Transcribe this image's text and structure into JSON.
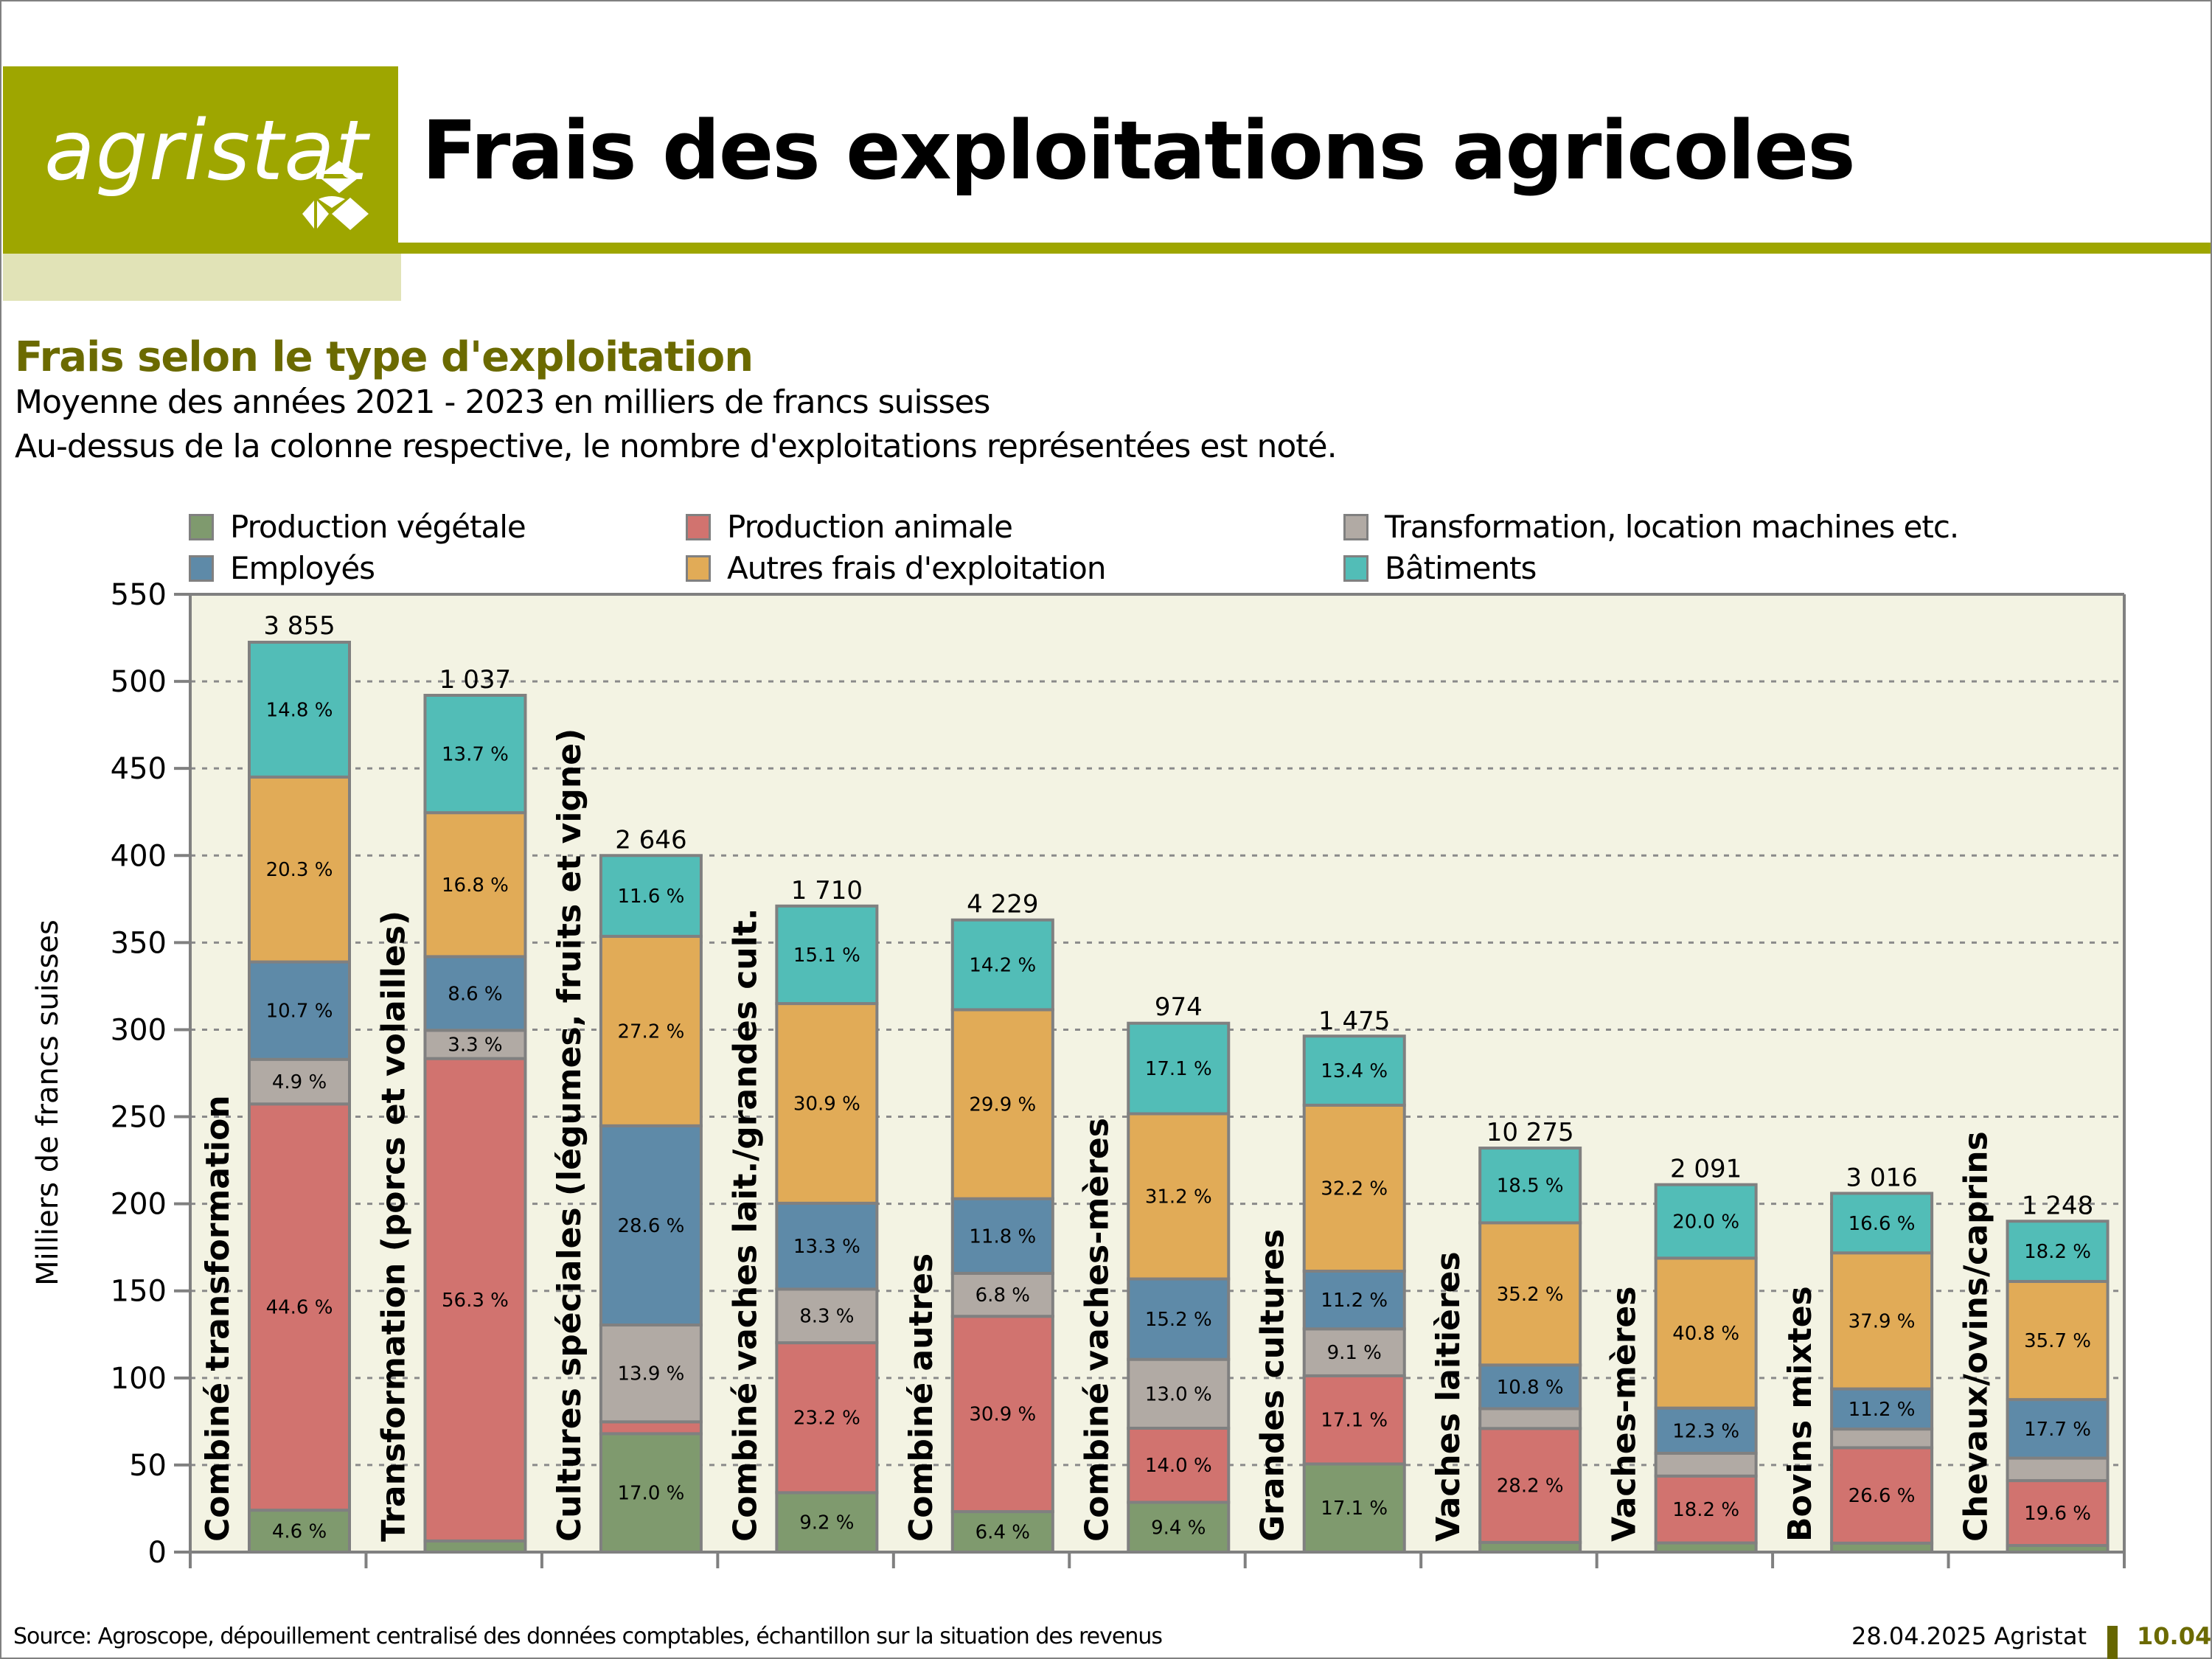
{
  "header": {
    "logo_text": "agristat",
    "title": "Frais des exploitations agricoles",
    "brand_color": "#9ea600",
    "brand_light_color": "#e1e3b7"
  },
  "section": {
    "subtitle": "Frais selon le type d'exploitation",
    "line1": "Moyenne des années 2021 - 2023 en milliers de francs suisses",
    "line2": "Au-dessus de la colonne respective, le nombre d'exploitations représentées est noté."
  },
  "footer": {
    "source": "Source: Agroscope, dépouillement centralisé des données comptables, échantillon sur la situation des revenus",
    "date_org": "28.04.2025 Agristat",
    "page_number": "10.04"
  },
  "chart_data": {
    "type": "bar",
    "stacked": true,
    "title": "Frais selon le type d'exploitation",
    "xlabel": "",
    "ylabel": "Milliers de francs suisses",
    "ylim": [
      0,
      550
    ],
    "yticks": [
      0,
      50,
      100,
      150,
      200,
      250,
      300,
      350,
      400,
      450,
      500,
      550
    ],
    "grid": true,
    "legend_position": "top",
    "categories": [
      "Combiné transformation",
      "Transformation (porcs et volailles)",
      "Cultures spéciales (légumes, fruits et vigne)",
      "Combiné vaches lait./grandes cult.",
      "Combiné autres",
      "Combiné vaches-mères",
      "Grandes cultures",
      "Vaches laitières",
      "Vaches-mères",
      "Bovins mixtes",
      "Chevaux/ovins/caprins"
    ],
    "totals": [
      523,
      492,
      400,
      371,
      363,
      304,
      296,
      232,
      211,
      206,
      190
    ],
    "farm_counts": [
      "3 855",
      "1 037",
      "2 646",
      "1 710",
      "4 229",
      "974",
      "1 475",
      "10 275",
      "2 091",
      "3 016",
      "1 248"
    ],
    "series": [
      {
        "name": "Production végétale",
        "color": "#7f9a6e",
        "percent": [
          4.6,
          1.3,
          17.0,
          9.2,
          6.4,
          9.4,
          17.1,
          2.4,
          2.5,
          2.5,
          2.0
        ],
        "labels": [
          "4.6 %",
          null,
          "17.0 %",
          "9.2 %",
          "6.4 %",
          "9.4 %",
          "17.1 %",
          null,
          null,
          null,
          null
        ]
      },
      {
        "name": "Production animale",
        "color": "#d1736f",
        "percent": [
          44.6,
          56.3,
          1.7,
          23.2,
          30.9,
          14.0,
          17.1,
          28.2,
          18.2,
          26.6,
          19.6
        ],
        "labels": [
          "44.6 %",
          "56.3 %",
          null,
          "23.2 %",
          "30.9 %",
          "14.0 %",
          "17.1 %",
          "28.2 %",
          "18.2 %",
          "26.6 %",
          "19.6 %"
        ]
      },
      {
        "name": "Transformation, location machines etc.",
        "color": "#b1aaa4",
        "percent": [
          4.9,
          3.3,
          13.9,
          8.3,
          6.8,
          13.0,
          9.1,
          4.9,
          6.2,
          5.2,
          6.8
        ],
        "labels": [
          "4.9 %",
          "3.3 %",
          "13.9 %",
          "8.3 %",
          "6.8 %",
          "13.0 %",
          "9.1 %",
          null,
          null,
          null,
          null
        ]
      },
      {
        "name": "Employés",
        "color": "#5e8aa8",
        "percent": [
          10.7,
          8.6,
          28.6,
          13.3,
          11.8,
          15.2,
          11.2,
          10.8,
          12.3,
          11.2,
          17.7
        ],
        "labels": [
          "10.7 %",
          "8.6 %",
          "28.6 %",
          "13.3 %",
          "11.8 %",
          "15.2 %",
          "11.2 %",
          "10.8 %",
          "12.3 %",
          "11.2 %",
          "17.7 %"
        ]
      },
      {
        "name": "Autres frais d'exploitation",
        "color": "#e1ab57",
        "percent": [
          20.3,
          16.8,
          27.2,
          30.9,
          29.9,
          31.2,
          32.2,
          35.2,
          40.8,
          37.9,
          35.7
        ],
        "labels": [
          "20.3 %",
          "16.8 %",
          "27.2 %",
          "30.9 %",
          "29.9 %",
          "31.2 %",
          "32.2 %",
          "35.2 %",
          "40.8 %",
          "37.9 %",
          "35.7 %"
        ]
      },
      {
        "name": "Bâtiments",
        "color": "#52bdb7",
        "percent": [
          14.8,
          13.7,
          11.6,
          15.1,
          14.2,
          17.1,
          13.4,
          18.5,
          20.0,
          16.6,
          18.2
        ],
        "labels": [
          "14.8 %",
          "13.7 %",
          "11.6 %",
          "15.1 %",
          "14.2 %",
          "17.1 %",
          "13.4 %",
          "18.5 %",
          "20.0 %",
          "16.6 %",
          "18.2 %"
        ]
      }
    ]
  }
}
